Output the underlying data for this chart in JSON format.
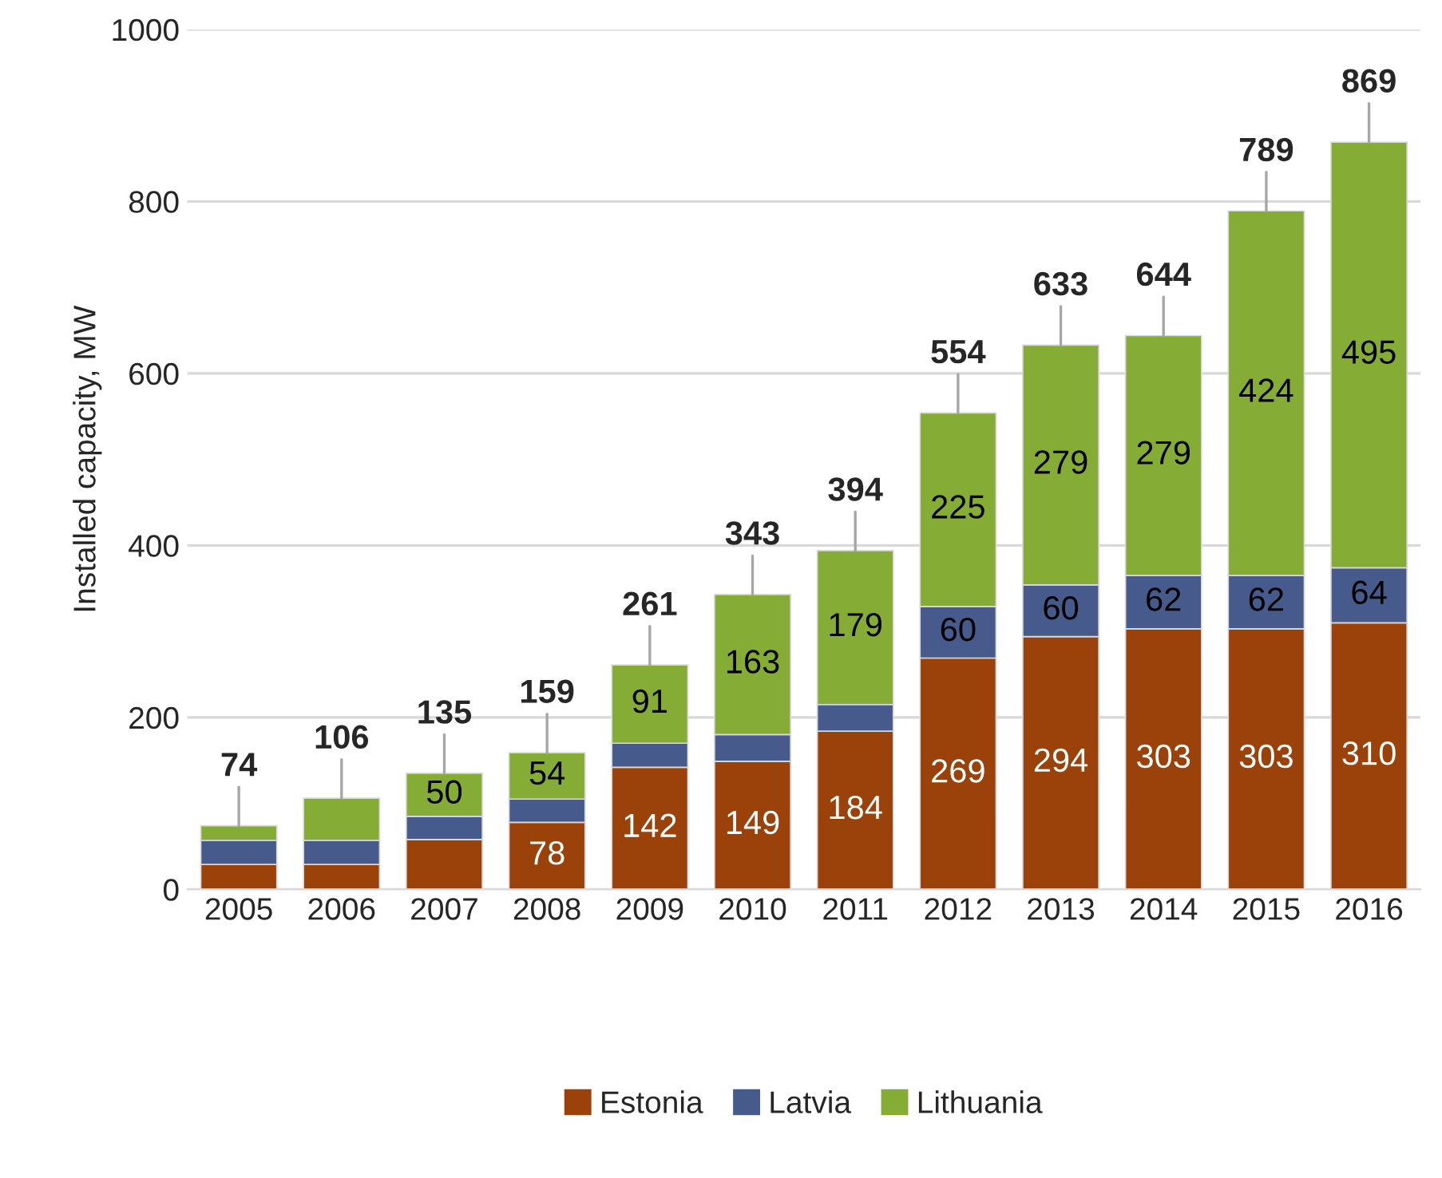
{
  "chart_data": {
    "type": "bar",
    "stacked": true,
    "ylabel": "Installed capacity, MW",
    "categories": [
      "2005",
      "2006",
      "2007",
      "2008",
      "2009",
      "2010",
      "2011",
      "2012",
      "2013",
      "2014",
      "2015",
      "2016"
    ],
    "series": [
      {
        "name": "Estonia",
        "color": "#9a4209",
        "values": [
          29,
          29,
          58,
          78,
          142,
          149,
          184,
          269,
          294,
          303,
          303,
          310
        ],
        "value_labels": [
          null,
          null,
          null,
          "78",
          "142",
          "149",
          "184",
          "269",
          "294",
          "303",
          "303",
          "310"
        ]
      },
      {
        "name": "Latvia",
        "color": "#465a8c",
        "values": [
          28,
          28,
          27,
          27,
          28,
          31,
          31,
          60,
          60,
          62,
          62,
          64
        ],
        "value_labels": [
          null,
          null,
          null,
          null,
          null,
          null,
          null,
          "60",
          "60",
          "62",
          "62",
          "64"
        ]
      },
      {
        "name": "Lithuania",
        "color": "#85ac34",
        "values": [
          17,
          49,
          50,
          54,
          91,
          163,
          179,
          225,
          279,
          279,
          424,
          495
        ],
        "value_labels": [
          null,
          null,
          "50",
          "54",
          "91",
          "163",
          "179",
          "225",
          "279",
          "279",
          "424",
          "495"
        ]
      }
    ],
    "totals": [
      "74",
      "106",
      "135",
      "159",
      "261",
      "343",
      "394",
      "554",
      "633",
      "644",
      "789",
      "869"
    ],
    "ylim": [
      0,
      1000
    ],
    "yticks": [
      0,
      200,
      400,
      600,
      800,
      1000
    ],
    "grid": "y",
    "legend": "bottom"
  }
}
